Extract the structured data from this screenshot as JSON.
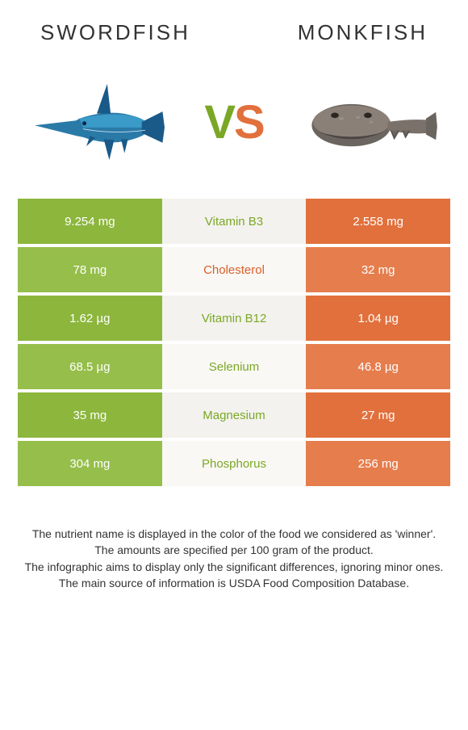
{
  "header": {
    "left_title": "SWORDFISH",
    "right_title": "MONKFISH"
  },
  "vs": {
    "v": "V",
    "s": "S"
  },
  "colors": {
    "green": "#8cb63c",
    "green_alt": "#96be4a",
    "orange": "#e2703c",
    "orange_alt": "#e67d4d",
    "mid_bg": "#f4f2ee",
    "mid_bg_alt": "#faf8f4",
    "green_text": "#7aa826",
    "orange_text": "#d85f2a"
  },
  "rows": [
    {
      "left": "9.254 mg",
      "mid": "Vitamin B3",
      "right": "2.558 mg",
      "winner": "left"
    },
    {
      "left": "78 mg",
      "mid": "Cholesterol",
      "right": "32 mg",
      "winner": "right"
    },
    {
      "left": "1.62 µg",
      "mid": "Vitamin B12",
      "right": "1.04 µg",
      "winner": "left"
    },
    {
      "left": "68.5 µg",
      "mid": "Selenium",
      "right": "46.8 µg",
      "winner": "left"
    },
    {
      "left": "35 mg",
      "mid": "Magnesium",
      "right": "27 mg",
      "winner": "left"
    },
    {
      "left": "304 mg",
      "mid": "Phosphorus",
      "right": "256 mg",
      "winner": "left"
    }
  ],
  "footer": {
    "line1": "The nutrient name is displayed in the color of the food we considered as 'winner'.",
    "line2": "The amounts are specified per 100 gram of the product.",
    "line3": "The infographic aims to display only the significant differences, ignoring minor ones.",
    "line4": "The main source of information is USDA Food Composition Database."
  }
}
